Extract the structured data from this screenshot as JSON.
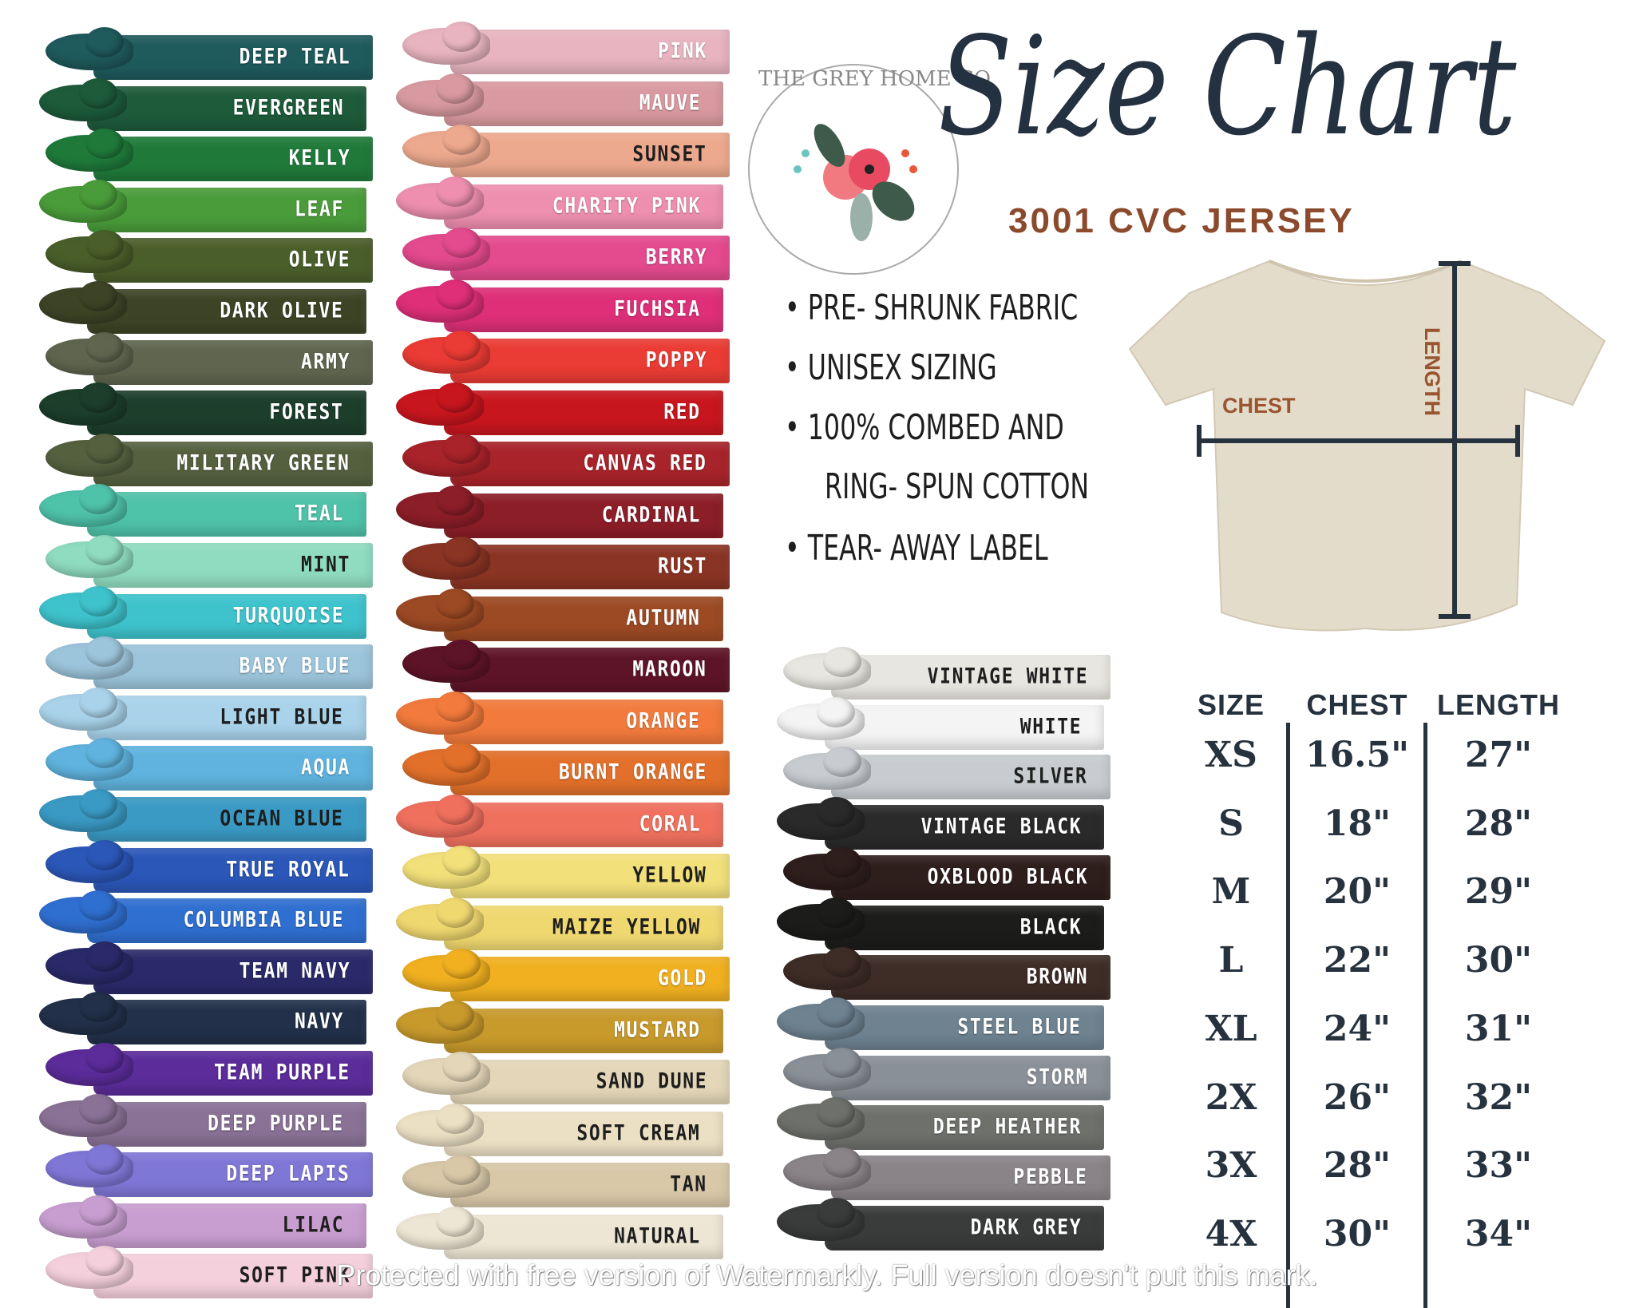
{
  "logo": {
    "text": "THE GREY HOME CO."
  },
  "title": "Size Chart",
  "subtitle": "3001 CVC JERSEY",
  "features": [
    "PRE- SHRUNK FABRIC",
    "UNISEX SIZING",
    "100% COMBED AND",
    "RING- SPUN COTTON",
    "TEAR- AWAY LABEL"
  ],
  "diagram": {
    "chest_label": "CHEST",
    "length_label": "LENGTH",
    "shirt_color": "#e4dccb",
    "line_color": "#27323f",
    "label_color": "#9a5530"
  },
  "size_table": {
    "headers": [
      "SIZE",
      "CHEST",
      "LENGTH"
    ],
    "rows": [
      [
        "XS",
        "16.5\"",
        "27\""
      ],
      [
        "S",
        "18\"",
        "28\""
      ],
      [
        "M",
        "20\"",
        "29\""
      ],
      [
        "L",
        "22\"",
        "30\""
      ],
      [
        "XL",
        "24\"",
        "31\""
      ],
      [
        "2X",
        "26\"",
        "32\""
      ],
      [
        "3X",
        "28\"",
        "33\""
      ],
      [
        "4X",
        "30\"",
        "34\""
      ]
    ]
  },
  "colors": [
    [
      {
        "name": "DEEP TEAL",
        "hex": "#1f5a5c",
        "text": "#ffffff"
      },
      {
        "name": "EVERGREEN",
        "hex": "#1d5b3a",
        "text": "#ffffff"
      },
      {
        "name": "KELLY",
        "hex": "#1f7a3a",
        "text": "#ffffff"
      },
      {
        "name": "LEAF",
        "hex": "#4a9c3a",
        "text": "#ffffff"
      },
      {
        "name": "OLIVE",
        "hex": "#4a5e2a",
        "text": "#ffffff"
      },
      {
        "name": "DARK OLIVE",
        "hex": "#3d4426",
        "text": "#ffffff"
      },
      {
        "name": "ARMY",
        "hex": "#5f654f",
        "text": "#ffffff"
      },
      {
        "name": "FOREST",
        "hex": "#1c3e2b",
        "text": "#ffffff"
      },
      {
        "name": "MILITARY GREEN",
        "hex": "#55603f",
        "text": "#ffffff"
      },
      {
        "name": "TEAL",
        "hex": "#4fc2aa",
        "text": "#ffffff"
      },
      {
        "name": "MINT",
        "hex": "#8fdcc0",
        "text": "#1e1e1e"
      },
      {
        "name": "TURQUOISE",
        "hex": "#3ec3cc",
        "text": "#ffffff"
      },
      {
        "name": "BABY BLUE",
        "hex": "#9cc4da",
        "text": "#ffffff"
      },
      {
        "name": "LIGHT BLUE",
        "hex": "#a9d3ea",
        "text": "#1e1e1e"
      },
      {
        "name": "AQUA",
        "hex": "#5fb3de",
        "text": "#ffffff"
      },
      {
        "name": "OCEAN BLUE",
        "hex": "#3a9ac4",
        "text": "#1e1e1e"
      },
      {
        "name": "TRUE ROYAL",
        "hex": "#2b57b8",
        "text": "#ffffff"
      },
      {
        "name": "COLUMBIA BLUE",
        "hex": "#2f6fd0",
        "text": "#ffffff"
      },
      {
        "name": "TEAM NAVY",
        "hex": "#2a2a6a",
        "text": "#ffffff"
      },
      {
        "name": "NAVY",
        "hex": "#22304a",
        "text": "#ffffff"
      },
      {
        "name": "TEAM PURPLE",
        "hex": "#5b2c9a",
        "text": "#ffffff"
      },
      {
        "name": "DEEP PURPLE",
        "hex": "#8a7296",
        "text": "#ffffff"
      },
      {
        "name": "DEEP LAPIS",
        "hex": "#7f77d6",
        "text": "#ffffff"
      },
      {
        "name": "LILAC",
        "hex": "#c89ed0",
        "text": "#1e1e1e"
      },
      {
        "name": "SOFT PINK",
        "hex": "#f4cfdc",
        "text": "#1e1e1e"
      }
    ],
    [
      {
        "name": "PINK",
        "hex": "#e8b4c0",
        "text": "#ffffff"
      },
      {
        "name": "MAUVE",
        "hex": "#d89aa0",
        "text": "#ffffff"
      },
      {
        "name": "SUNSET",
        "hex": "#eda98e",
        "text": "#1e1e1e"
      },
      {
        "name": "CHARITY PINK",
        "hex": "#ee8fb0",
        "text": "#ffffff"
      },
      {
        "name": "BERRY",
        "hex": "#e44a8e",
        "text": "#ffffff"
      },
      {
        "name": "FUCHSIA",
        "hex": "#de2f78",
        "text": "#ffffff"
      },
      {
        "name": "POPPY",
        "hex": "#ea3b34",
        "text": "#ffffff"
      },
      {
        "name": "RED",
        "hex": "#c8161e",
        "text": "#ffffff"
      },
      {
        "name": "CANVAS RED",
        "hex": "#a8232a",
        "text": "#ffffff"
      },
      {
        "name": "CARDINAL",
        "hex": "#8c1e28",
        "text": "#ffffff"
      },
      {
        "name": "RUST",
        "hex": "#8a3424",
        "text": "#ffffff"
      },
      {
        "name": "AUTUMN",
        "hex": "#9c4a24",
        "text": "#ffffff"
      },
      {
        "name": "MAROON",
        "hex": "#5e1428",
        "text": "#ffffff"
      },
      {
        "name": "ORANGE",
        "hex": "#f27a3c",
        "text": "#ffffff"
      },
      {
        "name": "BURNT ORANGE",
        "hex": "#e2702a",
        "text": "#ffffff"
      },
      {
        "name": "CORAL",
        "hex": "#f0705e",
        "text": "#ffffff"
      },
      {
        "name": "YELLOW",
        "hex": "#f2e07a",
        "text": "#1e1e1e"
      },
      {
        "name": "MAIZE YELLOW",
        "hex": "#f0d870",
        "text": "#1e1e1e"
      },
      {
        "name": "GOLD",
        "hex": "#f0b020",
        "text": "#ffffff"
      },
      {
        "name": "MUSTARD",
        "hex": "#c89a2c",
        "text": "#ffffff"
      },
      {
        "name": "SAND DUNE",
        "hex": "#e4d6b8",
        "text": "#1e1e1e"
      },
      {
        "name": "SOFT CREAM",
        "hex": "#ece0c4",
        "text": "#1e1e1e"
      },
      {
        "name": "TAN",
        "hex": "#d8c8a8",
        "text": "#1e1e1e"
      },
      {
        "name": "NATURAL",
        "hex": "#eee6d4",
        "text": "#1e1e1e"
      }
    ],
    [
      {
        "name": "VINTAGE WHITE",
        "hex": "#e8e6e0",
        "text": "#1e1e1e"
      },
      {
        "name": "WHITE",
        "hex": "#f4f4f4",
        "text": "#1e1e1e"
      },
      {
        "name": "SILVER",
        "hex": "#c8ccd0",
        "text": "#1e1e1e"
      },
      {
        "name": "VINTAGE BLACK",
        "hex": "#2a2a2a",
        "text": "#ffffff"
      },
      {
        "name": "OXBLOOD BLACK",
        "hex": "#2e1e1c",
        "text": "#ffffff"
      },
      {
        "name": "BLACK",
        "hex": "#1c1c1a",
        "text": "#ffffff"
      },
      {
        "name": "BROWN",
        "hex": "#3e2c26",
        "text": "#ffffff"
      },
      {
        "name": "STEEL BLUE",
        "hex": "#6e8290",
        "text": "#ffffff"
      },
      {
        "name": "STORM",
        "hex": "#8a9098",
        "text": "#ffffff"
      },
      {
        "name": "DEEP HEATHER",
        "hex": "#6e706c",
        "text": "#ffffff"
      },
      {
        "name": "PEBBLE",
        "hex": "#8a8488",
        "text": "#ffffff"
      },
      {
        "name": "DARK GREY",
        "hex": "#3a3c3c",
        "text": "#ffffff"
      }
    ]
  ],
  "watermark": "Protected with free version of Watermarkly. Full version doesn't put this mark."
}
